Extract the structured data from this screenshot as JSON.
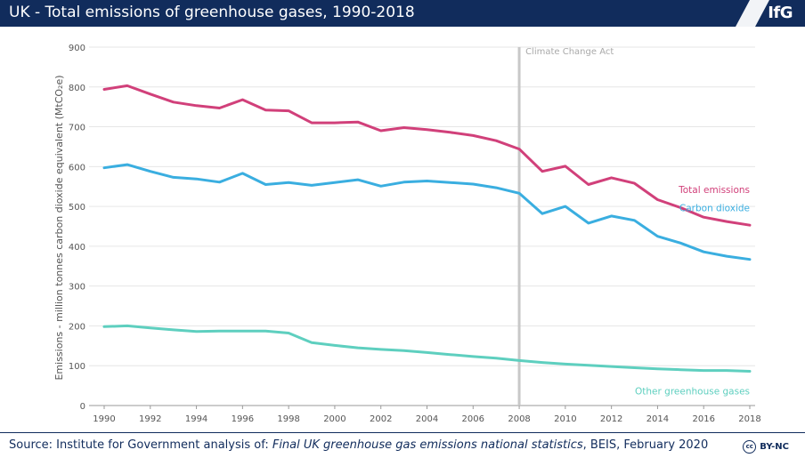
{
  "header": {
    "title": "UK - Total emissions of greenhouse gases, 1990-2018",
    "logo_text": "IfG"
  },
  "footer": {
    "source_prefix": "Source: Institute for Government analysis of: ",
    "source_italic": "Final UK greenhouse gas emissions national statistics",
    "source_suffix": ", BEIS, February 2020",
    "license_icon": "cc",
    "license_label": "BY-NC"
  },
  "colors": {
    "header_bg": "#112c5c",
    "total": "#d1407a",
    "co2": "#3aaee0",
    "other": "#5ecfbf",
    "marker": "#c8c8c8"
  },
  "chart_data": {
    "type": "line",
    "title": "UK - Total emissions of greenhouse gases, 1990-2018",
    "ylabel": "Emissions - million tonnes carbon dioxide equivalent (MtCO₂e)",
    "xlabel": "",
    "ylim": [
      0,
      900
    ],
    "yticks": [
      "0",
      "100",
      "200",
      "300",
      "400",
      "500",
      "600",
      "700",
      "800",
      "900"
    ],
    "xticks": [
      "1990",
      "1992",
      "1994",
      "1996",
      "1998",
      "2000",
      "2002",
      "2004",
      "2006",
      "2008",
      "2010",
      "2012",
      "2014",
      "2016",
      "2018"
    ],
    "grid": true,
    "x": [
      1990,
      1991,
      1992,
      1993,
      1994,
      1995,
      1996,
      1997,
      1998,
      1999,
      2000,
      2001,
      2002,
      2003,
      2004,
      2005,
      2006,
      2007,
      2008,
      2009,
      2010,
      2011,
      2012,
      2013,
      2014,
      2015,
      2016,
      2017,
      2018
    ],
    "series": [
      {
        "name": "Total emissions",
        "color": "#d1407a",
        "values": [
          794,
          803,
          782,
          762,
          753,
          747,
          768,
          742,
          740,
          710,
          710,
          712,
          690,
          698,
          693,
          686,
          678,
          665,
          644,
          588,
          601,
          555,
          572,
          558,
          517,
          497,
          473,
          462,
          453
        ]
      },
      {
        "name": "Carbon dioxide",
        "color": "#3aaee0",
        "values": [
          597,
          605,
          588,
          573,
          569,
          561,
          583,
          555,
          560,
          553,
          560,
          567,
          551,
          561,
          564,
          560,
          556,
          547,
          533,
          482,
          500,
          458,
          476,
          465,
          425,
          408,
          386,
          375,
          367
        ]
      },
      {
        "name": "Other greenhouse gases",
        "color": "#5ecfbf",
        "values": [
          198,
          200,
          195,
          190,
          186,
          187,
          187,
          187,
          182,
          158,
          151,
          145,
          141,
          138,
          133,
          128,
          123,
          119,
          113,
          108,
          104,
          101,
          98,
          95,
          92,
          90,
          88,
          88,
          86
        ]
      }
    ],
    "annotations": [
      {
        "text": "Climate Change Act",
        "x": 2008
      }
    ]
  }
}
